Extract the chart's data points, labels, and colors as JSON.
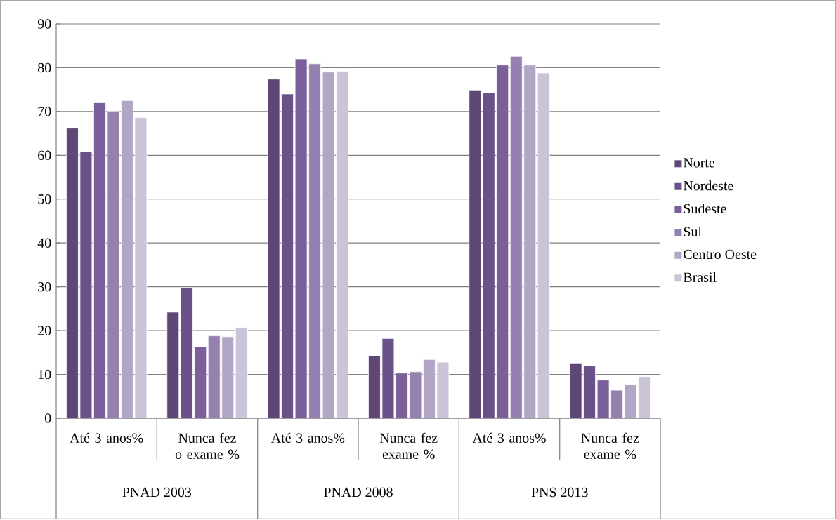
{
  "chart_data": {
    "type": "bar",
    "categories": [
      "Até 3 anos%",
      "Nunca fez o exame %",
      "Até 3 anos%",
      "Nunca fez exame %",
      "Até 3 anos%",
      "Nunca fez exame %"
    ],
    "series": [
      {
        "name": "Norte",
        "color": "#5e4776",
        "values": [
          66.2,
          24.2,
          77.4,
          14.2,
          74.9,
          12.6
        ]
      },
      {
        "name": "Nordeste",
        "color": "#6b5189",
        "values": [
          60.8,
          29.7,
          74.0,
          18.2,
          74.3,
          12.0
        ]
      },
      {
        "name": "Sudeste",
        "color": "#7b5f9a",
        "values": [
          72.0,
          16.3,
          82.0,
          10.3,
          80.6,
          8.7
        ]
      },
      {
        "name": "Sul",
        "color": "#9581b0",
        "values": [
          70.1,
          18.8,
          80.9,
          10.6,
          82.6,
          6.4
        ]
      },
      {
        "name": "Centro Oeste",
        "color": "#b1a6c6",
        "values": [
          72.5,
          18.6,
          79.0,
          13.4,
          80.6,
          7.7
        ]
      },
      {
        "name": "Brasil",
        "color": "#cbc3d8",
        "values": [
          68.6,
          20.7,
          79.2,
          12.8,
          78.8,
          9.5
        ]
      }
    ],
    "annotations": [
      "PNAD 2003",
      "PNAD 2008",
      "PNS 2013"
    ],
    "ylim": [
      0,
      90
    ],
    "yticks": [
      0,
      10,
      20,
      30,
      40,
      50,
      60,
      70,
      80,
      90
    ],
    "grid": "y",
    "legend": "right"
  }
}
